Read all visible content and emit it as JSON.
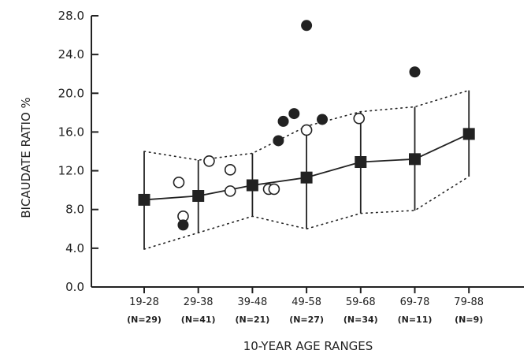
{
  "chart_data": {
    "type": "scatter",
    "title": "",
    "xlabel": "10-YEAR AGE RANGES",
    "ylabel": "BICAUDATE RATIO %",
    "ylim": [
      0,
      28
    ],
    "yticks": [
      "0.0",
      "4.0",
      "8.0",
      "12.0",
      "16.0",
      "20.0",
      "24.0",
      "28.0"
    ],
    "categories": [
      "19-28",
      "29-38",
      "39-48",
      "49-58",
      "59-68",
      "69-78",
      "79-88"
    ],
    "n_labels": [
      "(N=29)",
      "(N=41)",
      "(N=21)",
      "(N=27)",
      "(N=34)",
      "(N=11)",
      "(N=9)"
    ],
    "grid": false,
    "series": [
      {
        "marker": "filled-square",
        "connected": true,
        "mean": [
          9.0,
          9.4,
          10.5,
          11.3,
          12.9,
          13.2,
          15.8
        ],
        "error_low": [
          3.9,
          5.6,
          7.3,
          6.0,
          7.6,
          7.9,
          11.4
        ],
        "error_high": [
          14.0,
          13.1,
          13.8,
          16.6,
          18.1,
          18.6,
          20.3
        ]
      },
      {
        "marker": "open-circle",
        "points": [
          [
            0.64,
            10.8
          ],
          [
            0.72,
            7.3
          ],
          [
            1.2,
            13.0
          ],
          [
            1.59,
            12.1
          ],
          [
            1.59,
            9.9
          ],
          [
            2.3,
            10.1
          ],
          [
            2.4,
            10.1
          ],
          [
            3.0,
            16.2
          ],
          [
            3.97,
            17.4
          ]
        ]
      },
      {
        "marker": "filled-circle",
        "points": [
          [
            0.72,
            6.4
          ],
          [
            2.48,
            15.1
          ],
          [
            2.57,
            17.1
          ],
          [
            2.77,
            17.9
          ],
          [
            3.0,
            27.0
          ],
          [
            3.29,
            17.3
          ],
          [
            5.0,
            22.2
          ]
        ]
      }
    ],
    "envelope": {
      "style": "dotted",
      "upper": [
        14.0,
        13.1,
        13.8,
        16.6,
        18.1,
        18.6,
        20.3
      ],
      "lower": [
        3.9,
        5.6,
        7.3,
        6.0,
        7.6,
        7.9,
        11.4
      ]
    },
    "colors": {
      "ink": "#222222",
      "background": "#ffffff"
    }
  }
}
